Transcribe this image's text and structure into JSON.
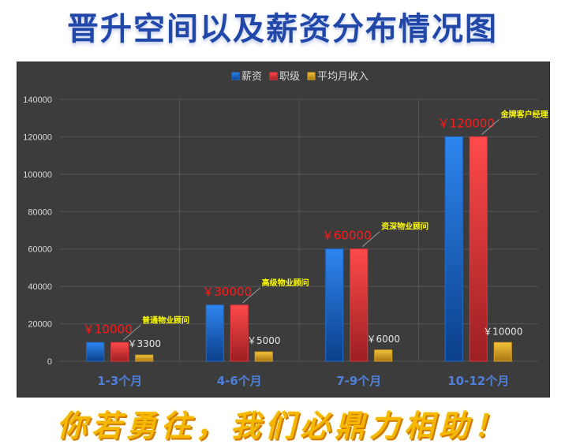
{
  "header": {
    "title": "晋升空间以及薪资分布情况图"
  },
  "footer": {
    "slogan": "你若勇往，我们必鼎力相助！"
  },
  "chart_data": {
    "type": "bar",
    "categories": [
      "1-3个月",
      "4-6个月",
      "7-9个月",
      "10-12个月"
    ],
    "series": [
      {
        "name": "薪资",
        "values": [
          10000,
          30000,
          60000,
          120000
        ],
        "color": "#1f6fd6"
      },
      {
        "name": "职级",
        "values": [
          10000,
          30000,
          60000,
          120000
        ],
        "color": "#e8333a"
      },
      {
        "name": "平均月收入",
        "values": [
          3300,
          5000,
          6000,
          10000
        ],
        "color": "#d9a21e"
      }
    ],
    "salary_labels": [
      "￥10000",
      "￥30000",
      "￥60000",
      "￥120000"
    ],
    "income_labels": [
      "￥3300",
      "￥5000",
      "￥6000",
      "￥10000"
    ],
    "rank_callouts": [
      "普通物业顾问",
      "高级物业顾问",
      "资深物业顾问",
      "金牌客户经理"
    ],
    "yticks": [
      "0",
      "20000",
      "40000",
      "60000",
      "80000",
      "100000",
      "120000",
      "140000"
    ],
    "ylim": [
      0,
      140000
    ],
    "grid": true,
    "legend": "top-center",
    "colors": {
      "background": "#3c3c3c",
      "gridline": "#555555",
      "axis_text": "#d9d9d9",
      "category_text": "#4f7fd9",
      "salary_label": "#ff1a1a",
      "callout": "#ffff00",
      "income_label": "#e6e6e6"
    }
  }
}
